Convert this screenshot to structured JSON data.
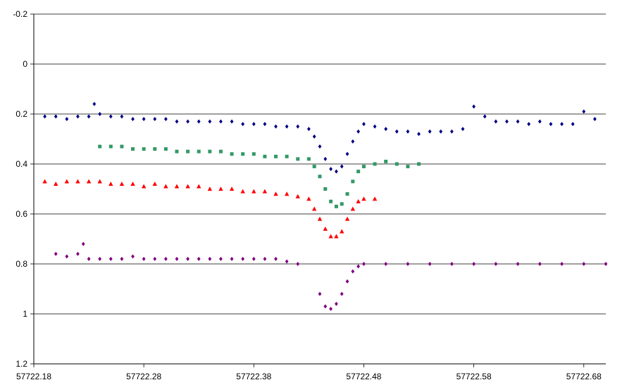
{
  "chart_data": {
    "type": "scatter",
    "title": "",
    "xlabel": "",
    "ylabel": "",
    "xlim": [
      57722.18,
      57722.7
    ],
    "ylim": [
      -0.2,
      1.2
    ],
    "y_inverted": true,
    "grid": "horizontal",
    "legend": "none",
    "x_ticks": [
      "57722.18",
      "57722.28",
      "57722.38",
      "57722.48",
      "57722.58",
      "57722.68"
    ],
    "y_ticks": [
      "-0.2",
      "0",
      "0.2",
      "0.4",
      "0.6",
      "0.8",
      "1",
      "1.2"
    ],
    "series": [
      {
        "marker": "diamond",
        "color": "#000080",
        "points": [
          [
            57722.19,
            0.21
          ],
          [
            57722.2,
            0.21
          ],
          [
            57722.21,
            0.22
          ],
          [
            57722.22,
            0.21
          ],
          [
            57722.23,
            0.21
          ],
          [
            57722.235,
            0.16
          ],
          [
            57722.24,
            0.2
          ],
          [
            57722.25,
            0.21
          ],
          [
            57722.26,
            0.21
          ],
          [
            57722.27,
            0.22
          ],
          [
            57722.28,
            0.22
          ],
          [
            57722.29,
            0.22
          ],
          [
            57722.3,
            0.22
          ],
          [
            57722.31,
            0.23
          ],
          [
            57722.32,
            0.23
          ],
          [
            57722.33,
            0.23
          ],
          [
            57722.34,
            0.23
          ],
          [
            57722.35,
            0.23
          ],
          [
            57722.36,
            0.23
          ],
          [
            57722.37,
            0.24
          ],
          [
            57722.38,
            0.24
          ],
          [
            57722.39,
            0.24
          ],
          [
            57722.4,
            0.25
          ],
          [
            57722.41,
            0.25
          ],
          [
            57722.42,
            0.25
          ],
          [
            57722.43,
            0.26
          ],
          [
            57722.435,
            0.29
          ],
          [
            57722.44,
            0.33
          ],
          [
            57722.445,
            0.38
          ],
          [
            57722.45,
            0.42
          ],
          [
            57722.455,
            0.43
          ],
          [
            57722.46,
            0.41
          ],
          [
            57722.465,
            0.36
          ],
          [
            57722.47,
            0.31
          ],
          [
            57722.475,
            0.27
          ],
          [
            57722.48,
            0.24
          ],
          [
            57722.49,
            0.25
          ],
          [
            57722.5,
            0.26
          ],
          [
            57722.51,
            0.27
          ],
          [
            57722.52,
            0.27
          ],
          [
            57722.53,
            0.28
          ],
          [
            57722.54,
            0.27
          ],
          [
            57722.55,
            0.27
          ],
          [
            57722.56,
            0.27
          ],
          [
            57722.57,
            0.26
          ],
          [
            57722.58,
            0.17
          ],
          [
            57722.59,
            0.21
          ],
          [
            57722.6,
            0.23
          ],
          [
            57722.61,
            0.23
          ],
          [
            57722.62,
            0.23
          ],
          [
            57722.63,
            0.24
          ],
          [
            57722.64,
            0.23
          ],
          [
            57722.65,
            0.24
          ],
          [
            57722.66,
            0.24
          ],
          [
            57722.67,
            0.24
          ],
          [
            57722.68,
            0.19
          ],
          [
            57722.69,
            0.22
          ]
        ]
      },
      {
        "marker": "square",
        "color": "#339966",
        "points": [
          [
            57722.24,
            0.33
          ],
          [
            57722.25,
            0.33
          ],
          [
            57722.26,
            0.33
          ],
          [
            57722.27,
            0.34
          ],
          [
            57722.28,
            0.34
          ],
          [
            57722.29,
            0.34
          ],
          [
            57722.3,
            0.34
          ],
          [
            57722.31,
            0.35
          ],
          [
            57722.32,
            0.35
          ],
          [
            57722.33,
            0.35
          ],
          [
            57722.34,
            0.35
          ],
          [
            57722.35,
            0.35
          ],
          [
            57722.36,
            0.36
          ],
          [
            57722.37,
            0.36
          ],
          [
            57722.38,
            0.36
          ],
          [
            57722.39,
            0.37
          ],
          [
            57722.4,
            0.37
          ],
          [
            57722.41,
            0.37
          ],
          [
            57722.42,
            0.38
          ],
          [
            57722.43,
            0.38
          ],
          [
            57722.435,
            0.41
          ],
          [
            57722.44,
            0.45
          ],
          [
            57722.445,
            0.5
          ],
          [
            57722.45,
            0.55
          ],
          [
            57722.455,
            0.57
          ],
          [
            57722.46,
            0.56
          ],
          [
            57722.465,
            0.52
          ],
          [
            57722.47,
            0.47
          ],
          [
            57722.475,
            0.43
          ],
          [
            57722.48,
            0.41
          ],
          [
            57722.49,
            0.4
          ],
          [
            57722.5,
            0.39
          ],
          [
            57722.51,
            0.4
          ],
          [
            57722.52,
            0.41
          ],
          [
            57722.53,
            0.4
          ]
        ]
      },
      {
        "marker": "triangle",
        "color": "#ff0000",
        "points": [
          [
            57722.19,
            0.47
          ],
          [
            57722.2,
            0.48
          ],
          [
            57722.21,
            0.47
          ],
          [
            57722.22,
            0.47
          ],
          [
            57722.23,
            0.47
          ],
          [
            57722.24,
            0.47
          ],
          [
            57722.25,
            0.48
          ],
          [
            57722.26,
            0.48
          ],
          [
            57722.27,
            0.48
          ],
          [
            57722.28,
            0.49
          ],
          [
            57722.29,
            0.48
          ],
          [
            57722.3,
            0.49
          ],
          [
            57722.31,
            0.49
          ],
          [
            57722.32,
            0.49
          ],
          [
            57722.33,
            0.49
          ],
          [
            57722.34,
            0.5
          ],
          [
            57722.35,
            0.5
          ],
          [
            57722.36,
            0.5
          ],
          [
            57722.37,
            0.51
          ],
          [
            57722.38,
            0.51
          ],
          [
            57722.39,
            0.51
          ],
          [
            57722.4,
            0.52
          ],
          [
            57722.41,
            0.52
          ],
          [
            57722.42,
            0.53
          ],
          [
            57722.43,
            0.54
          ],
          [
            57722.435,
            0.58
          ],
          [
            57722.44,
            0.62
          ],
          [
            57722.445,
            0.66
          ],
          [
            57722.45,
            0.69
          ],
          [
            57722.455,
            0.69
          ],
          [
            57722.46,
            0.67
          ],
          [
            57722.465,
            0.62
          ],
          [
            57722.47,
            0.58
          ],
          [
            57722.475,
            0.55
          ],
          [
            57722.48,
            0.54
          ],
          [
            57722.49,
            0.54
          ]
        ]
      },
      {
        "marker": "diamond",
        "color": "#800080",
        "points": [
          [
            57722.2,
            0.76
          ],
          [
            57722.21,
            0.77
          ],
          [
            57722.22,
            0.76
          ],
          [
            57722.225,
            0.72
          ],
          [
            57722.23,
            0.78
          ],
          [
            57722.24,
            0.78
          ],
          [
            57722.25,
            0.78
          ],
          [
            57722.26,
            0.78
          ],
          [
            57722.27,
            0.77
          ],
          [
            57722.28,
            0.78
          ],
          [
            57722.29,
            0.78
          ],
          [
            57722.3,
            0.78
          ],
          [
            57722.31,
            0.78
          ],
          [
            57722.32,
            0.78
          ],
          [
            57722.33,
            0.78
          ],
          [
            57722.34,
            0.78
          ],
          [
            57722.35,
            0.78
          ],
          [
            57722.36,
            0.78
          ],
          [
            57722.37,
            0.78
          ],
          [
            57722.38,
            0.78
          ],
          [
            57722.39,
            0.78
          ],
          [
            57722.4,
            0.78
          ],
          [
            57722.41,
            0.79
          ],
          [
            57722.42,
            0.8
          ],
          [
            57722.44,
            0.92
          ],
          [
            57722.445,
            0.97
          ],
          [
            57722.45,
            0.98
          ],
          [
            57722.455,
            0.96
          ],
          [
            57722.46,
            0.92
          ],
          [
            57722.465,
            0.87
          ],
          [
            57722.47,
            0.83
          ],
          [
            57722.475,
            0.81
          ],
          [
            57722.48,
            0.8
          ],
          [
            57722.5,
            0.8
          ],
          [
            57722.52,
            0.8
          ],
          [
            57722.54,
            0.8
          ],
          [
            57722.56,
            0.8
          ],
          [
            57722.58,
            0.8
          ],
          [
            57722.6,
            0.8
          ],
          [
            57722.62,
            0.8
          ],
          [
            57722.64,
            0.8
          ],
          [
            57722.66,
            0.8
          ],
          [
            57722.68,
            0.8
          ],
          [
            57722.7,
            0.8
          ]
        ]
      }
    ]
  }
}
